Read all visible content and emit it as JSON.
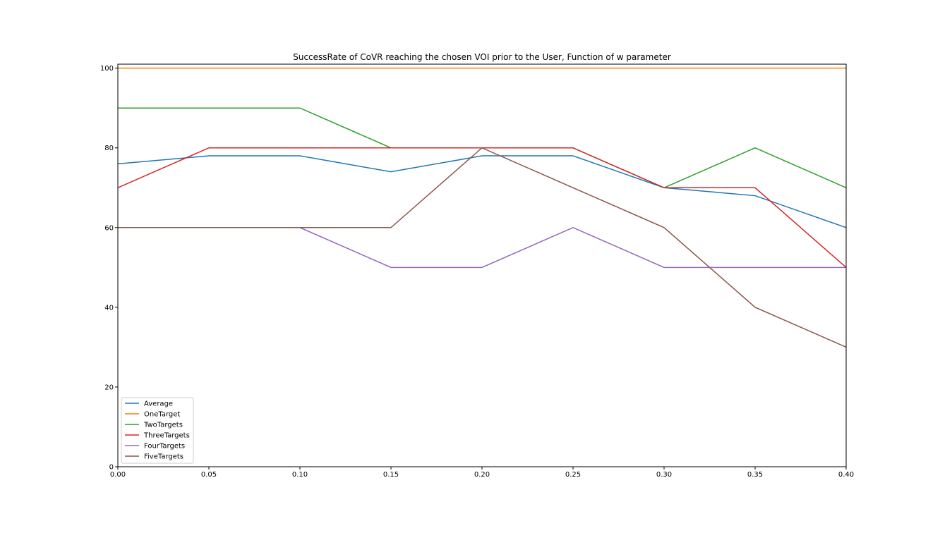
{
  "chart_data": {
    "type": "line",
    "title": "SuccessRate of CoVR reaching the chosen VOI prior to the User, Function of w parameter",
    "xlabel": "",
    "ylabel": "",
    "x": [
      0.0,
      0.05,
      0.1,
      0.15,
      0.2,
      0.25,
      0.3,
      0.35,
      0.4
    ],
    "xlim": [
      0.0,
      0.4
    ],
    "ylim": [
      0,
      101
    ],
    "x_ticks": [
      "0.00",
      "0.05",
      "0.10",
      "0.15",
      "0.20",
      "0.25",
      "0.30",
      "0.35",
      "0.40"
    ],
    "y_ticks": [
      "0",
      "20",
      "40",
      "60",
      "80",
      "100"
    ],
    "grid": false,
    "legend_position": "lower-left",
    "series": [
      {
        "name": "Average",
        "color": "#1f77b4",
        "values": [
          76,
          78,
          78,
          74,
          78,
          78,
          70,
          68,
          60
        ]
      },
      {
        "name": "OneTarget",
        "color": "#ff7f0e",
        "values": [
          100,
          100,
          100,
          100,
          100,
          100,
          100,
          100,
          100
        ]
      },
      {
        "name": "TwoTargets",
        "color": "#2ca02c",
        "values": [
          90,
          90,
          90,
          80,
          80,
          80,
          70,
          80,
          70
        ]
      },
      {
        "name": "ThreeTargets",
        "color": "#d62728",
        "values": [
          70,
          80,
          80,
          80,
          80,
          80,
          70,
          70,
          50
        ]
      },
      {
        "name": "FourTargets",
        "color": "#9467bd",
        "values": [
          60,
          60,
          60,
          50,
          50,
          60,
          50,
          50,
          50
        ]
      },
      {
        "name": "FiveTargets",
        "color": "#8c564b",
        "values": [
          60,
          60,
          60,
          60,
          80,
          70,
          60,
          40,
          30
        ]
      }
    ]
  }
}
